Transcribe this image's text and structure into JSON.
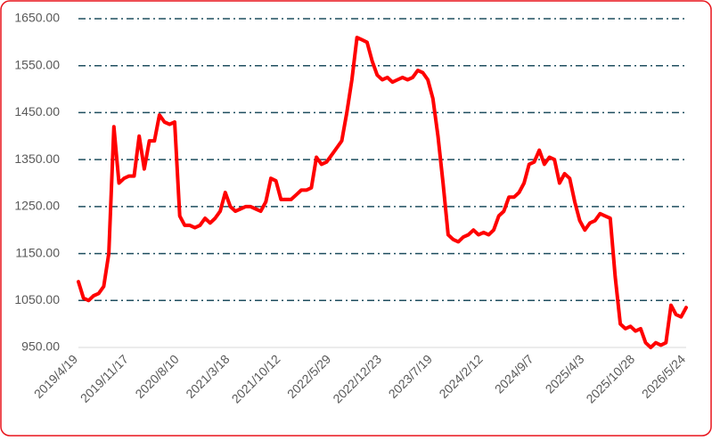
{
  "chart_data": {
    "type": "line",
    "categories": [
      "2019/4/19",
      null,
      null,
      null,
      null,
      null,
      null,
      null,
      null,
      null,
      "2019/11/17",
      null,
      null,
      null,
      null,
      null,
      null,
      null,
      null,
      null,
      "2020/8/10",
      null,
      null,
      null,
      null,
      null,
      null,
      null,
      null,
      null,
      "2021/3/18",
      null,
      null,
      null,
      null,
      null,
      null,
      null,
      null,
      null,
      "2021/10/12",
      null,
      null,
      null,
      null,
      null,
      null,
      null,
      null,
      null,
      "2022/5/29",
      null,
      null,
      null,
      null,
      null,
      null,
      null,
      null,
      null,
      "2022/12/23",
      null,
      null,
      null,
      null,
      null,
      null,
      null,
      null,
      null,
      "2023/7/19",
      null,
      null,
      null,
      null,
      null,
      null,
      null,
      null,
      null,
      "2024/2/12",
      null,
      null,
      null,
      null,
      null,
      null,
      null,
      null,
      null,
      "2024/9/7",
      null,
      null,
      null,
      null,
      null,
      null,
      null,
      null,
      null,
      "2025/4/3",
      null,
      null,
      null,
      null,
      null,
      null,
      null,
      null,
      null,
      "2025/10/28",
      null,
      null,
      null,
      null,
      null,
      null,
      null,
      null,
      null,
      "2026/5/24"
    ],
    "series": [
      {
        "color": "#ff0000",
        "values": [
          1090,
          1055,
          1050,
          1060,
          1065,
          1080,
          1150,
          1420,
          1300,
          1310,
          1315,
          1315,
          1400,
          1330,
          1390,
          1390,
          1445,
          1430,
          1425,
          1430,
          1230,
          1210,
          1210,
          1205,
          1210,
          1225,
          1215,
          1225,
          1240,
          1280,
          1250,
          1240,
          1245,
          1250,
          1250,
          1245,
          1240,
          1260,
          1310,
          1305,
          1265,
          1265,
          1265,
          1275,
          1285,
          1285,
          1290,
          1355,
          1340,
          1345,
          1360,
          1375,
          1390,
          1450,
          1520,
          1610,
          1605,
          1600,
          1560,
          1530,
          1520,
          1525,
          1515,
          1520,
          1525,
          1520,
          1525,
          1540,
          1535,
          1520,
          1480,
          1400,
          1300,
          1190,
          1180,
          1175,
          1185,
          1190,
          1200,
          1190,
          1195,
          1190,
          1200,
          1230,
          1240,
          1270,
          1270,
          1280,
          1300,
          1340,
          1345,
          1370,
          1340,
          1355,
          1350,
          1300,
          1320,
          1310,
          1260,
          1220,
          1200,
          1215,
          1220,
          1235,
          1230,
          1225,
          1100,
          1000,
          990,
          995,
          985,
          990,
          960,
          950,
          960,
          955,
          960,
          1040,
          1020,
          1015,
          1035
        ]
      }
    ],
    "ylim": [
      950,
      1650
    ],
    "yticks": [
      {
        "value": 950,
        "label": "950.00"
      },
      {
        "value": 1050,
        "label": "1050.00"
      },
      {
        "value": 1150,
        "label": "1150.00"
      },
      {
        "value": 1250,
        "label": "1250.00"
      },
      {
        "value": 1350,
        "label": "1350.00"
      },
      {
        "value": 1450,
        "label": "1450.00"
      },
      {
        "value": 1550,
        "label": "1550.00"
      },
      {
        "value": 1650,
        "label": "1650.00"
      }
    ],
    "grid": true
  }
}
